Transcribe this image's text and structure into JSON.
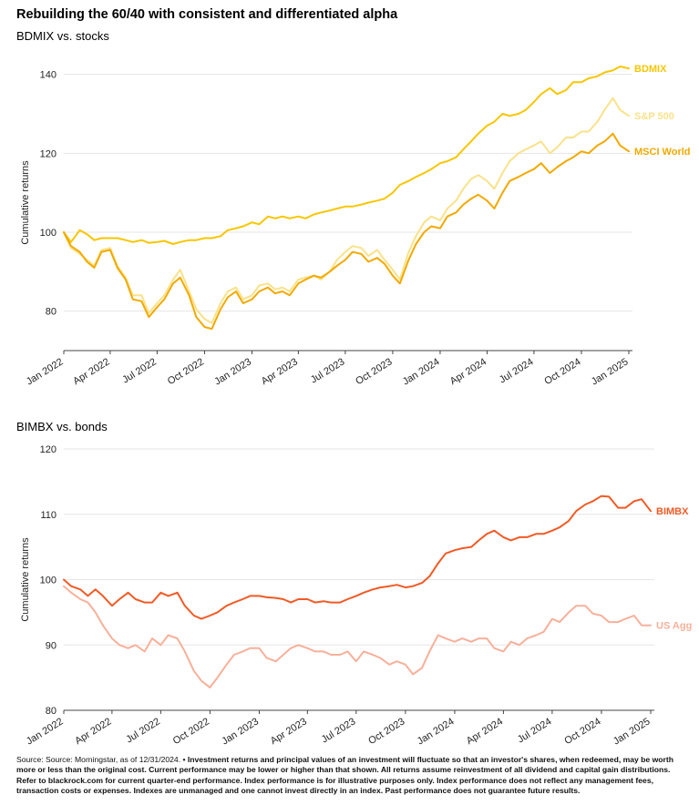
{
  "title": "Rebuilding the 60/40 with consistent and differentiated alpha",
  "chart_data": [
    {
      "type": "line",
      "title": "BDMIX vs. stocks",
      "xlabel": "",
      "ylabel": "Cumulative returns",
      "xlim": [
        "2022-01-01",
        "2025-01-01"
      ],
      "ylim": [
        70,
        145
      ],
      "yticks": [
        80,
        100,
        120,
        140
      ],
      "xticks": [
        "Jan 2022",
        "Apr 2022",
        "Jul 2022",
        "Oct 2022",
        "Jan 2023",
        "Apr 2023",
        "Jul 2023",
        "Oct 2023",
        "Jan 2024",
        "Apr 2024",
        "Jul 2024",
        "Oct 2024",
        "Jan 2025"
      ],
      "grid": true,
      "legend": "line-end labels",
      "series": [
        {
          "name": "BDMIX",
          "color": "#f7c600",
          "x": [
            "2022-01-01",
            "2022-01-15",
            "2022-02-01",
            "2022-02-15",
            "2022-03-01",
            "2022-03-15",
            "2022-04-01",
            "2022-04-15",
            "2022-05-01",
            "2022-05-15",
            "2022-06-01",
            "2022-06-15",
            "2022-07-01",
            "2022-07-15",
            "2022-08-01",
            "2022-08-15",
            "2022-09-01",
            "2022-09-15",
            "2022-10-01",
            "2022-10-15",
            "2022-11-01",
            "2022-11-15",
            "2022-12-01",
            "2022-12-15",
            "2023-01-01",
            "2023-01-15",
            "2023-02-01",
            "2023-02-15",
            "2023-03-01",
            "2023-03-15",
            "2023-04-01",
            "2023-04-15",
            "2023-05-01",
            "2023-05-15",
            "2023-06-01",
            "2023-06-15",
            "2023-07-01",
            "2023-07-15",
            "2023-08-01",
            "2023-08-15",
            "2023-09-01",
            "2023-09-15",
            "2023-10-01",
            "2023-10-15",
            "2023-11-01",
            "2023-11-15",
            "2023-12-01",
            "2023-12-15",
            "2024-01-01",
            "2024-01-15",
            "2024-02-01",
            "2024-02-15",
            "2024-03-01",
            "2024-03-15",
            "2024-04-01",
            "2024-04-15",
            "2024-05-01",
            "2024-05-15",
            "2024-06-01",
            "2024-06-15",
            "2024-07-01",
            "2024-07-15",
            "2024-08-01",
            "2024-08-15",
            "2024-09-01",
            "2024-09-15",
            "2024-10-01",
            "2024-10-15",
            "2024-11-01",
            "2024-11-15",
            "2024-12-01",
            "2024-12-15",
            "2025-01-01"
          ],
          "y": [
            100,
            97.5,
            100.5,
            99.5,
            98,
            98.5,
            98.5,
            98.5,
            98,
            97.5,
            98,
            97.3,
            97.5,
            97.8,
            97,
            97.5,
            98,
            98,
            98.5,
            98.5,
            99,
            100.5,
            101,
            101.5,
            102.5,
            102,
            104,
            103.5,
            104,
            103.5,
            104,
            103.5,
            104.5,
            105,
            105.5,
            106,
            106.5,
            106.5,
            107,
            107.5,
            108,
            108.5,
            110,
            112,
            113,
            114,
            115,
            116,
            117.5,
            118,
            119,
            121,
            123,
            125,
            127,
            128,
            130,
            129.5,
            130,
            131,
            133,
            135,
            136.5,
            135,
            136,
            138,
            138,
            139,
            139.5,
            140.5,
            141,
            142,
            141.5
          ]
        },
        {
          "name": "S&P 500",
          "color": "#f9e28a",
          "x": [
            "2022-01-01",
            "2022-01-15",
            "2022-02-01",
            "2022-02-15",
            "2022-03-01",
            "2022-03-15",
            "2022-04-01",
            "2022-04-15",
            "2022-05-01",
            "2022-05-15",
            "2022-06-01",
            "2022-06-15",
            "2022-07-01",
            "2022-07-15",
            "2022-08-01",
            "2022-08-15",
            "2022-09-01",
            "2022-09-15",
            "2022-10-01",
            "2022-10-15",
            "2022-11-01",
            "2022-11-15",
            "2022-12-01",
            "2022-12-15",
            "2023-01-01",
            "2023-01-15",
            "2023-02-01",
            "2023-02-15",
            "2023-03-01",
            "2023-03-15",
            "2023-04-01",
            "2023-04-15",
            "2023-05-01",
            "2023-05-15",
            "2023-06-01",
            "2023-06-15",
            "2023-07-01",
            "2023-07-15",
            "2023-08-01",
            "2023-08-15",
            "2023-09-01",
            "2023-09-15",
            "2023-10-01",
            "2023-10-15",
            "2023-11-01",
            "2023-11-15",
            "2023-12-01",
            "2023-12-15",
            "2024-01-01",
            "2024-01-15",
            "2024-02-01",
            "2024-02-15",
            "2024-03-01",
            "2024-03-15",
            "2024-04-01",
            "2024-04-15",
            "2024-05-01",
            "2024-05-15",
            "2024-06-01",
            "2024-06-15",
            "2024-07-01",
            "2024-07-15",
            "2024-08-01",
            "2024-08-15",
            "2024-09-01",
            "2024-09-15",
            "2024-10-01",
            "2024-10-15",
            "2024-11-01",
            "2024-11-15",
            "2024-12-01",
            "2024-12-15",
            "2025-01-01"
          ],
          "y": [
            100,
            96,
            94.5,
            93,
            91.5,
            95.5,
            96,
            91.5,
            88.5,
            84,
            84,
            79.5,
            82,
            84,
            88,
            90.5,
            85,
            80.5,
            78,
            77,
            82,
            85,
            86,
            83,
            84,
            86.5,
            87,
            85.5,
            86,
            85,
            88,
            88.5,
            89,
            88,
            90,
            93,
            95,
            96.5,
            96,
            94,
            95.5,
            93,
            90.5,
            88,
            95,
            99,
            102.5,
            104,
            103,
            106,
            108,
            111,
            113.5,
            114.5,
            113,
            111,
            115,
            118,
            120,
            121,
            122,
            123,
            120,
            121.5,
            124,
            124,
            125.5,
            125.5,
            128,
            131,
            134,
            131,
            129.5
          ]
        },
        {
          "name": "MSCI World",
          "color": "#f2a900",
          "x": [
            "2022-01-01",
            "2022-01-15",
            "2022-02-01",
            "2022-02-15",
            "2022-03-01",
            "2022-03-15",
            "2022-04-01",
            "2022-04-15",
            "2022-05-01",
            "2022-05-15",
            "2022-06-01",
            "2022-06-15",
            "2022-07-01",
            "2022-07-15",
            "2022-08-01",
            "2022-08-15",
            "2022-09-01",
            "2022-09-15",
            "2022-10-01",
            "2022-10-15",
            "2022-11-01",
            "2022-11-15",
            "2022-12-01",
            "2022-12-15",
            "2023-01-01",
            "2023-01-15",
            "2023-02-01",
            "2023-02-15",
            "2023-03-01",
            "2023-03-15",
            "2023-04-01",
            "2023-04-15",
            "2023-05-01",
            "2023-05-15",
            "2023-06-01",
            "2023-06-15",
            "2023-07-01",
            "2023-07-15",
            "2023-08-01",
            "2023-08-15",
            "2023-09-01",
            "2023-09-15",
            "2023-10-01",
            "2023-10-15",
            "2023-11-01",
            "2023-11-15",
            "2023-12-01",
            "2023-12-15",
            "2024-01-01",
            "2024-01-15",
            "2024-02-01",
            "2024-02-15",
            "2024-03-01",
            "2024-03-15",
            "2024-04-01",
            "2024-04-15",
            "2024-05-01",
            "2024-05-15",
            "2024-06-01",
            "2024-06-15",
            "2024-07-01",
            "2024-07-15",
            "2024-08-01",
            "2024-08-15",
            "2024-09-01",
            "2024-09-15",
            "2024-10-01",
            "2024-10-15",
            "2024-11-01",
            "2024-11-15",
            "2024-12-01",
            "2024-12-15",
            "2025-01-01"
          ],
          "y": [
            100,
            96.5,
            95,
            92.5,
            91,
            95,
            95.5,
            91,
            88,
            83,
            82.5,
            78.5,
            81,
            83,
            87,
            88.5,
            84,
            78.5,
            76,
            75.5,
            80.5,
            83.5,
            85,
            82,
            83,
            85,
            86,
            84.5,
            85,
            84,
            87,
            88,
            89,
            88.5,
            90,
            91.5,
            93,
            95,
            94.5,
            92.5,
            93.5,
            92,
            89,
            87,
            93,
            97,
            100,
            101.5,
            101,
            104,
            105,
            107,
            108.5,
            109.5,
            108,
            106,
            110,
            113,
            114,
            115,
            116,
            117.5,
            115,
            116.5,
            118,
            119,
            120.5,
            120,
            122,
            123,
            125,
            122,
            120.5
          ]
        }
      ]
    },
    {
      "type": "line",
      "title": "BIMBX vs. bonds",
      "xlabel": "",
      "ylabel": "Cumulative returns",
      "xlim": [
        "2022-01-01",
        "2025-01-01"
      ],
      "ylim": [
        80,
        120
      ],
      "yticks": [
        80,
        90,
        100,
        110,
        120
      ],
      "xticks": [
        "Jan 2022",
        "Apr 2022",
        "Jul 2022",
        "Oct 2022",
        "Jan 2023",
        "Apr 2023",
        "Jul 2023",
        "Oct 2023",
        "Jan 2024",
        "Apr 2024",
        "Jul 2024",
        "Oct 2024",
        "Jan 2025"
      ],
      "grid": true,
      "legend": "line-end labels",
      "series": [
        {
          "name": "BIMBX",
          "color": "#f15a24",
          "x": [
            "2022-01-01",
            "2022-01-15",
            "2022-02-01",
            "2022-02-15",
            "2022-03-01",
            "2022-03-15",
            "2022-04-01",
            "2022-04-15",
            "2022-05-01",
            "2022-05-15",
            "2022-06-01",
            "2022-06-15",
            "2022-07-01",
            "2022-07-15",
            "2022-08-01",
            "2022-08-15",
            "2022-09-01",
            "2022-09-15",
            "2022-10-01",
            "2022-10-15",
            "2022-11-01",
            "2022-11-15",
            "2022-12-01",
            "2022-12-15",
            "2023-01-01",
            "2023-01-15",
            "2023-02-01",
            "2023-02-15",
            "2023-03-01",
            "2023-03-15",
            "2023-04-01",
            "2023-04-15",
            "2023-05-01",
            "2023-05-15",
            "2023-06-01",
            "2023-06-15",
            "2023-07-01",
            "2023-07-15",
            "2023-08-01",
            "2023-08-15",
            "2023-09-01",
            "2023-09-15",
            "2023-10-01",
            "2023-10-15",
            "2023-11-01",
            "2023-11-15",
            "2023-12-01",
            "2023-12-15",
            "2024-01-01",
            "2024-01-15",
            "2024-02-01",
            "2024-02-15",
            "2024-03-01",
            "2024-03-15",
            "2024-04-01",
            "2024-04-15",
            "2024-05-01",
            "2024-05-15",
            "2024-06-01",
            "2024-06-15",
            "2024-07-01",
            "2024-07-15",
            "2024-08-01",
            "2024-08-15",
            "2024-09-01",
            "2024-09-15",
            "2024-10-01",
            "2024-10-15",
            "2024-11-01",
            "2024-11-15",
            "2024-12-01",
            "2024-12-15",
            "2025-01-01"
          ],
          "y": [
            100,
            99,
            98.5,
            97.5,
            98.5,
            97.5,
            96,
            97,
            98,
            97,
            96.5,
            96.5,
            98,
            97.5,
            98,
            96,
            94.5,
            94,
            94.5,
            95,
            96,
            96.5,
            97,
            97.5,
            97.5,
            97.3,
            97.2,
            97,
            96.5,
            97,
            97,
            96.5,
            96.7,
            96.5,
            96.5,
            97,
            97.5,
            98,
            98.5,
            98.8,
            99,
            99.2,
            98.8,
            99,
            99.5,
            100.5,
            102.5,
            104,
            104.5,
            104.8,
            105,
            106,
            107,
            107.5,
            106.5,
            106,
            106.5,
            106.5,
            107,
            107,
            107.5,
            108,
            109,
            110.5,
            111.5,
            112,
            112.8,
            112.7,
            111,
            111,
            112,
            112.3,
            110.5
          ]
        },
        {
          "name": "US Agg",
          "color": "#f7b09a",
          "x": [
            "2022-01-01",
            "2022-01-15",
            "2022-02-01",
            "2022-02-15",
            "2022-03-01",
            "2022-03-15",
            "2022-04-01",
            "2022-04-15",
            "2022-05-01",
            "2022-05-15",
            "2022-06-01",
            "2022-06-15",
            "2022-07-01",
            "2022-07-15",
            "2022-08-01",
            "2022-08-15",
            "2022-09-01",
            "2022-09-15",
            "2022-10-01",
            "2022-10-15",
            "2022-11-01",
            "2022-11-15",
            "2022-12-01",
            "2022-12-15",
            "2023-01-01",
            "2023-01-15",
            "2023-02-01",
            "2023-02-15",
            "2023-03-01",
            "2023-03-15",
            "2023-04-01",
            "2023-04-15",
            "2023-05-01",
            "2023-05-15",
            "2023-06-01",
            "2023-06-15",
            "2023-07-01",
            "2023-07-15",
            "2023-08-01",
            "2023-08-15",
            "2023-09-01",
            "2023-09-15",
            "2023-10-01",
            "2023-10-15",
            "2023-11-01",
            "2023-11-15",
            "2023-12-01",
            "2023-12-15",
            "2024-01-01",
            "2024-01-15",
            "2024-02-01",
            "2024-02-15",
            "2024-03-01",
            "2024-03-15",
            "2024-04-01",
            "2024-04-15",
            "2024-05-01",
            "2024-05-15",
            "2024-06-01",
            "2024-06-15",
            "2024-07-01",
            "2024-07-15",
            "2024-08-01",
            "2024-08-15",
            "2024-09-01",
            "2024-09-15",
            "2024-10-01",
            "2024-10-15",
            "2024-11-01",
            "2024-11-15",
            "2024-12-01",
            "2024-12-15",
            "2025-01-01"
          ],
          "y": [
            99,
            98,
            97,
            96.5,
            95,
            93,
            91,
            90,
            89.5,
            90,
            89,
            91,
            90,
            91.5,
            91,
            89,
            86,
            84.5,
            83.5,
            85,
            87,
            88.5,
            89,
            89.5,
            89.5,
            88,
            87.5,
            88.5,
            89.5,
            90,
            89.5,
            89,
            89,
            88.5,
            88.5,
            89,
            87.5,
            89,
            88.5,
            88,
            87,
            87.5,
            87,
            85.5,
            86.5,
            89,
            91.5,
            91,
            90.5,
            91,
            90.5,
            91,
            91,
            89.5,
            89,
            90.5,
            90,
            91,
            91.5,
            92,
            94,
            93.5,
            95,
            96,
            96,
            94.8,
            94.5,
            93.5,
            93.5,
            94,
            94.5,
            93,
            93
          ]
        }
      ]
    }
  ],
  "footnote": {
    "prefix": "Source: Source: Morningstar, as of 12/31/2024.",
    "body": " • Investment returns and principal values of an investment will fluctuate so that an investor's shares, when redeemed, may be worth more or less than the original cost. Current performance may be lower or higher than that shown. All returns assume reinvestment of all dividend and capital gain distributions. Refer to blackrock.com for current quarter-end performance. Index performance is for illustrative purposes only. Index performance does not reflect any management fees, transaction costs or expenses. Indexes are unmanaged and one cannot invest directly in an index. Past performance does not guarantee future results."
  }
}
